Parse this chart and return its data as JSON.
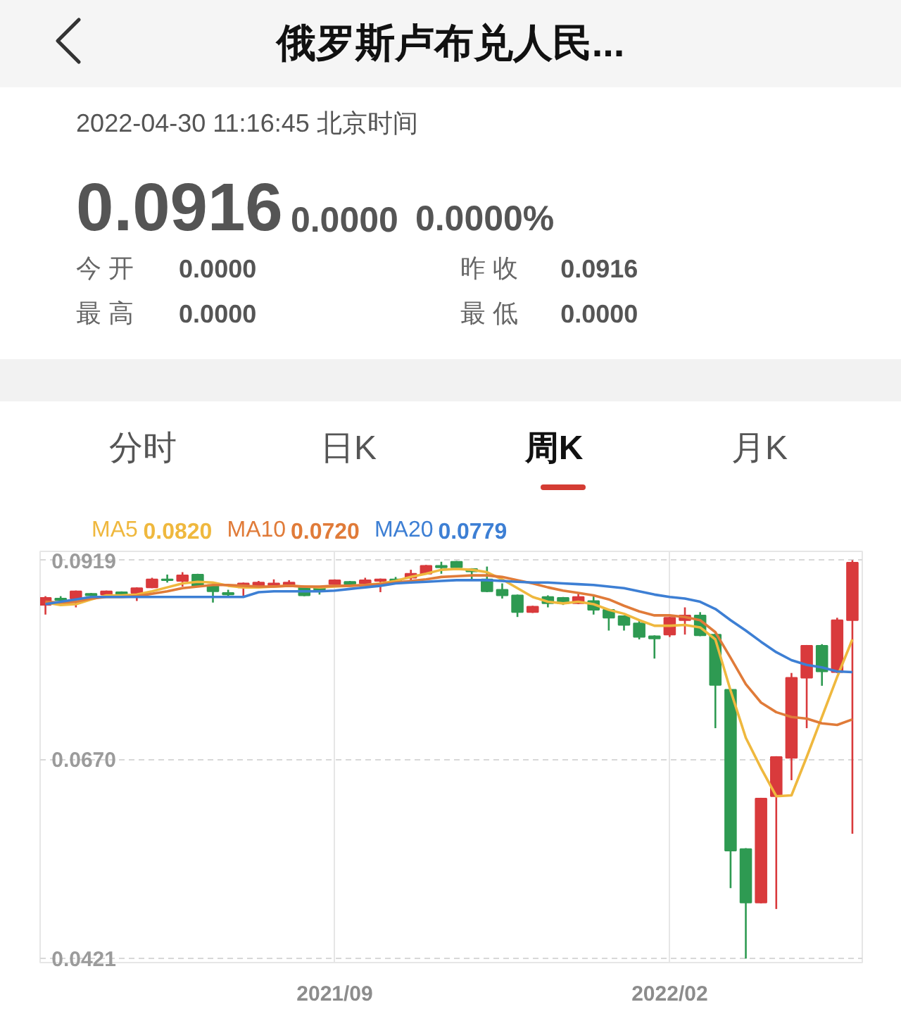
{
  "chart_data": {
    "type": "candlestick",
    "title": "俄罗斯卢布兑人民...",
    "subtitle": "2022-04-30 11:16:45 北京时间",
    "annotations": [
      "0.0916",
      "0.0000",
      "0.0000%",
      "今 开",
      "0.0000",
      "昨 收",
      "0.0916",
      "最 高",
      "0.0000",
      "最 低",
      "0.0000",
      "分时",
      "日K",
      "周K",
      "月K"
    ],
    "categories": [
      null,
      null,
      null,
      null,
      null,
      null,
      null,
      null,
      null,
      null,
      null,
      null,
      null,
      null,
      null,
      null,
      null,
      null,
      null,
      "2021/09",
      null,
      null,
      null,
      null,
      null,
      null,
      null,
      null,
      null,
      null,
      null,
      null,
      null,
      null,
      null,
      null,
      null,
      null,
      null,
      null,
      null,
      "2022/02",
      null,
      null,
      null,
      null,
      null,
      null,
      null,
      null,
      null,
      null,
      null,
      null
    ],
    "ohlc": [
      [
        0.0863,
        0.0874,
        0.0851,
        0.0872
      ],
      [
        0.0871,
        0.0874,
        0.0866,
        0.0869
      ],
      [
        0.0871,
        0.0881,
        0.086,
        0.088
      ],
      [
        0.0877,
        0.0878,
        0.0869,
        0.0875
      ],
      [
        0.0876,
        0.0881,
        0.0875,
        0.088
      ],
      [
        0.0879,
        0.088,
        0.0875,
        0.0876
      ],
      [
        0.0878,
        0.0885,
        0.0868,
        0.0884
      ],
      [
        0.0885,
        0.0897,
        0.0884,
        0.0895
      ],
      [
        0.0895,
        0.0901,
        0.0891,
        0.0894
      ],
      [
        0.0893,
        0.0904,
        0.0886,
        0.09
      ],
      [
        0.0901,
        0.0902,
        0.0886,
        0.0887
      ],
      [
        0.0888,
        0.0889,
        0.0866,
        0.088
      ],
      [
        0.0878,
        0.0882,
        0.0872,
        0.0876
      ],
      [
        0.0885,
        0.0891,
        0.0872,
        0.089
      ],
      [
        0.0886,
        0.0893,
        0.0885,
        0.0891
      ],
      [
        0.0887,
        0.0895,
        0.0886,
        0.089
      ],
      [
        0.0887,
        0.0894,
        0.0886,
        0.0891
      ],
      [
        0.0885,
        0.0886,
        0.0874,
        0.0875
      ],
      [
        0.0885,
        0.0886,
        0.0876,
        0.0882
      ],
      [
        0.0889,
        0.0895,
        0.0888,
        0.0894
      ],
      [
        0.0892,
        0.0893,
        0.0888,
        0.0889
      ],
      [
        0.089,
        0.0897,
        0.0887,
        0.0894
      ],
      [
        0.0893,
        0.0896,
        0.0879,
        0.0895
      ],
      [
        0.0895,
        0.0898,
        0.0892,
        0.0893
      ],
      [
        0.0897,
        0.0907,
        0.0894,
        0.0902
      ],
      [
        0.0902,
        0.0913,
        0.0901,
        0.0912
      ],
      [
        0.0912,
        0.0917,
        0.0902,
        0.091
      ],
      [
        0.0917,
        0.0918,
        0.0909,
        0.091
      ],
      [
        0.0908,
        0.0909,
        0.0895,
        0.0905
      ],
      [
        0.0895,
        0.0911,
        0.0879,
        0.088
      ],
      [
        0.0882,
        0.089,
        0.0871,
        0.0875
      ],
      [
        0.0875,
        0.0876,
        0.0848,
        0.0854
      ],
      [
        0.0854,
        0.0862,
        0.0853,
        0.0861
      ],
      [
        0.0873,
        0.0875,
        0.086,
        0.0865
      ],
      [
        0.0872,
        0.0873,
        0.0863,
        0.0865
      ],
      [
        0.0865,
        0.0877,
        0.0864,
        0.0873
      ],
      [
        0.0868,
        0.0876,
        0.0851,
        0.0857
      ],
      [
        0.0857,
        0.0858,
        0.0831,
        0.0847
      ],
      [
        0.0849,
        0.085,
        0.0831,
        0.0838
      ],
      [
        0.084,
        0.0844,
        0.082,
        0.0823
      ],
      [
        0.0824,
        0.0825,
        0.0796,
        0.0821
      ],
      [
        0.0826,
        0.0848,
        0.0823,
        0.0847
      ],
      [
        0.0844,
        0.086,
        0.0826,
        0.085
      ],
      [
        0.085,
        0.0854,
        0.0824,
        0.0825
      ],
      [
        0.0826,
        0.0827,
        0.0709,
        0.0763
      ],
      [
        0.0757,
        0.0758,
        0.0509,
        0.0556
      ],
      [
        0.0558,
        0.0559,
        0.0421,
        0.0491
      ],
      [
        0.0491,
        0.0622,
        0.049,
        0.0621
      ],
      [
        0.0624,
        0.0674,
        0.0483,
        0.0673
      ],
      [
        0.0672,
        0.0778,
        0.0644,
        0.0772
      ],
      [
        0.0772,
        0.0813,
        0.0709,
        0.0812
      ],
      [
        0.0812,
        0.0814,
        0.0762,
        0.078
      ],
      [
        0.0779,
        0.0847,
        0.0778,
        0.0844
      ],
      [
        0.0844,
        0.0919,
        0.0577,
        0.0916
      ]
    ],
    "colors": [
      "#d93a3c",
      "#2e9a52",
      "#d93a3c",
      "#2e9a52",
      "#d93a3c",
      "#2e9a52",
      "#d93a3c",
      "#d93a3c",
      "#2e9a52",
      "#d93a3c",
      "#2e9a52",
      "#2e9a52",
      "#2e9a52",
      "#d93a3c",
      "#d93a3c",
      "#d93a3c",
      "#d93a3c",
      "#2e9a52",
      "#2e9a52",
      "#d93a3c",
      "#2e9a52",
      "#d93a3c",
      "#d93a3c",
      "#2e9a52",
      "#d93a3c",
      "#d93a3c",
      "#2e9a52",
      "#2e9a52",
      "#2e9a52",
      "#2e9a52",
      "#2e9a52",
      "#2e9a52",
      "#d93a3c",
      "#2e9a52",
      "#2e9a52",
      "#d93a3c",
      "#2e9a52",
      "#2e9a52",
      "#2e9a52",
      "#2e9a52",
      "#2e9a52",
      "#d93a3c",
      "#d93a3c",
      "#2e9a52",
      "#2e9a52",
      "#2e9a52",
      "#2e9a52",
      "#d93a3c",
      "#d93a3c",
      "#d93a3c",
      "#d93a3c",
      "#2e9a52",
      "#d93a3c",
      "#d93a3c"
    ],
    "series": [
      {
        "name": "MA5 0.0820",
        "type": "line",
        "color": "#efb83e",
        "values": [
          0.0866,
          0.0863,
          0.0864,
          0.087,
          0.0875,
          0.0875,
          0.0876,
          0.088,
          0.0885,
          0.089,
          0.0892,
          0.0891,
          0.0887,
          0.0885,
          0.0885,
          0.0886,
          0.0887,
          0.0886,
          0.0885,
          0.0886,
          0.0887,
          0.0888,
          0.089,
          0.0893,
          0.0898,
          0.0902,
          0.0907,
          0.0908,
          0.0907,
          0.0904,
          0.0895,
          0.0884,
          0.0873,
          0.0867,
          0.0865,
          0.0867,
          0.0864,
          0.0857,
          0.0852,
          0.0844,
          0.0837,
          0.0837,
          0.0838,
          0.0835,
          0.082,
          0.0756,
          0.0697,
          0.0659,
          0.0624,
          0.0625,
          0.0673,
          0.0723,
          0.0773,
          0.082
        ]
      },
      {
        "name": "MA10 0.0720",
        "type": "line",
        "color": "#e07b39",
        "values": [
          0.0867,
          0.0866,
          0.0867,
          0.0871,
          0.0873,
          0.0873,
          0.0874,
          0.0877,
          0.088,
          0.0884,
          0.0886,
          0.0888,
          0.0888,
          0.0887,
          0.0886,
          0.0886,
          0.0887,
          0.0886,
          0.0886,
          0.0887,
          0.0887,
          0.0888,
          0.0889,
          0.0891,
          0.0893,
          0.0895,
          0.0898,
          0.0899,
          0.09,
          0.09,
          0.0898,
          0.0894,
          0.089,
          0.0885,
          0.0881,
          0.0878,
          0.0875,
          0.087,
          0.0862,
          0.0855,
          0.085,
          0.085,
          0.0848,
          0.0844,
          0.0829,
          0.0797,
          0.0764,
          0.0741,
          0.0729,
          0.0723,
          0.0721,
          0.0715,
          0.0713,
          0.072
        ]
      },
      {
        "name": "MA20 0.0779",
        "type": "line",
        "color": "#3d7fd4",
        "values": [
          0.0864,
          0.0867,
          0.087,
          0.0873,
          0.0873,
          0.0873,
          0.0873,
          0.0873,
          0.0873,
          0.0873,
          0.0873,
          0.0873,
          0.0873,
          0.0873,
          0.0879,
          0.088,
          0.088,
          0.088,
          0.088,
          0.0881,
          0.0883,
          0.0885,
          0.0887,
          0.089,
          0.0891,
          0.0892,
          0.0893,
          0.0894,
          0.0894,
          0.0894,
          0.0893,
          0.0892,
          0.0891,
          0.0891,
          0.089,
          0.0889,
          0.0888,
          0.0886,
          0.0884,
          0.088,
          0.0876,
          0.0873,
          0.0871,
          0.0867,
          0.0858,
          0.0844,
          0.0831,
          0.0817,
          0.0804,
          0.0794,
          0.0788,
          0.0785,
          0.078,
          0.0779
        ]
      }
    ],
    "ylim": [
      0.0416,
      0.093
    ],
    "yticks": [
      0.0421,
      {
        "value": 0.067,
        "label": "0.0670"
      },
      0.0919
    ],
    "grid": true,
    "legend": "top left"
  }
}
